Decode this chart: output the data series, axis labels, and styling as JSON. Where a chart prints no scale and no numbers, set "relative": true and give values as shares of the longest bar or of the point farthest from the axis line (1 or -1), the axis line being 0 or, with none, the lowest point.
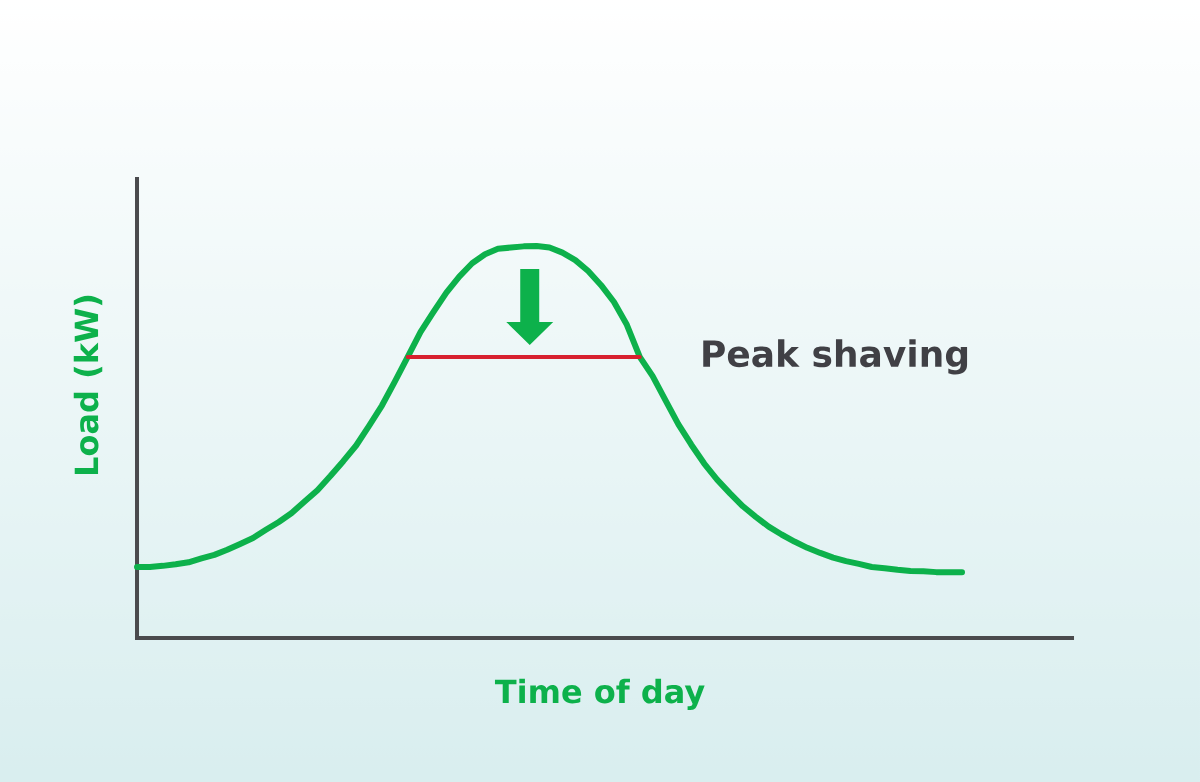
{
  "chart_data": {
    "type": "line",
    "xlabel": "Time of day",
    "ylabel": "Load (kW)",
    "relative": true,
    "categories": [
      null,
      null,
      null,
      null,
      null,
      null,
      null,
      null,
      null,
      null,
      null,
      null,
      null,
      null,
      null,
      null,
      null,
      null,
      null,
      null,
      null,
      null,
      null,
      null,
      null,
      null,
      null,
      null,
      null,
      null,
      null,
      null,
      null,
      null,
      null,
      null,
      null,
      null,
      null,
      null,
      null,
      null,
      null,
      null,
      null,
      null,
      null,
      null,
      null,
      null,
      null,
      null,
      null,
      null,
      null,
      null,
      null,
      null,
      null,
      null,
      null,
      null,
      null,
      null,
      null
    ],
    "series": [
      {
        "color": "#0db14b",
        "values": [
          0.181,
          0.181,
          0.184,
          0.188,
          0.193,
          0.203,
          0.212,
          0.225,
          0.24,
          0.255,
          0.276,
          0.296,
          0.319,
          0.348,
          0.377,
          0.413,
          0.451,
          0.491,
          0.541,
          0.593,
          0.654,
          0.717,
          0.781,
          0.832,
          0.881,
          0.922,
          0.956,
          0.979,
          0.993,
          0.996,
          0.999,
          1.0,
          0.996,
          0.983,
          0.964,
          0.936,
          0.9,
          0.857,
          0.799,
          0.717,
          0.668,
          0.606,
          0.545,
          0.493,
          0.445,
          0.404,
          0.369,
          0.336,
          0.309,
          0.284,
          0.264,
          0.246,
          0.23,
          0.217,
          0.205,
          0.196,
          0.189,
          0.181,
          0.178,
          0.174,
          0.171,
          0.17,
          0.168,
          0.168,
          0.168
        ]
      },
      {
        "name": "Peak shaving",
        "color": "#d7202f",
        "values": [
          null,
          null,
          null,
          null,
          null,
          null,
          null,
          null,
          null,
          null,
          null,
          null,
          null,
          null,
          null,
          null,
          null,
          null,
          null,
          null,
          null,
          0.717,
          0.717,
          0.717,
          0.717,
          0.717,
          0.717,
          0.717,
          0.717,
          0.717,
          0.717,
          0.717,
          0.717,
          0.717,
          0.717,
          0.717,
          0.717,
          0.717,
          0.717,
          0.717,
          null,
          null,
          null,
          null,
          null,
          null,
          null,
          null,
          null,
          null,
          null,
          null,
          null,
          null,
          null,
          null,
          null,
          null,
          null,
          null,
          null,
          null,
          null,
          null,
          null
        ]
      }
    ]
  }
}
